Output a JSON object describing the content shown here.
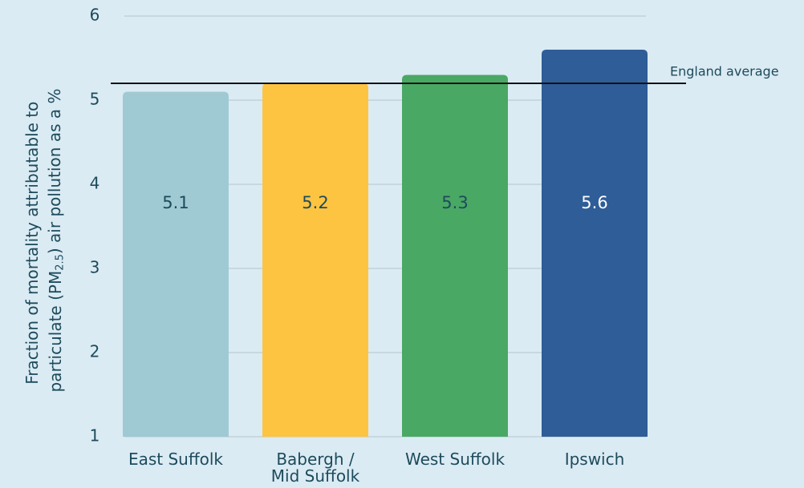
{
  "chart_data": {
    "type": "bar",
    "ylabel": [
      "Fraction of mortality attributable to",
      "particulate (PM",
      "2.5",
      ") air pollution as a %"
    ],
    "categories": [
      [
        "East Suffolk"
      ],
      [
        "Babergh /",
        "Mid Suffolk"
      ],
      [
        "West Suffolk"
      ],
      [
        "Ipswich"
      ]
    ],
    "values": [
      5.1,
      5.2,
      5.3,
      5.6
    ],
    "colors": [
      "#9fcad3",
      "#fdc441",
      "#4aa865",
      "#2e5d98"
    ],
    "ylim": [
      1,
      6
    ],
    "yticks": [
      1,
      2,
      3,
      4,
      5,
      6
    ],
    "grid": true,
    "reference_line": {
      "label": "England average",
      "value": 5.2,
      "color": "#111111"
    }
  }
}
